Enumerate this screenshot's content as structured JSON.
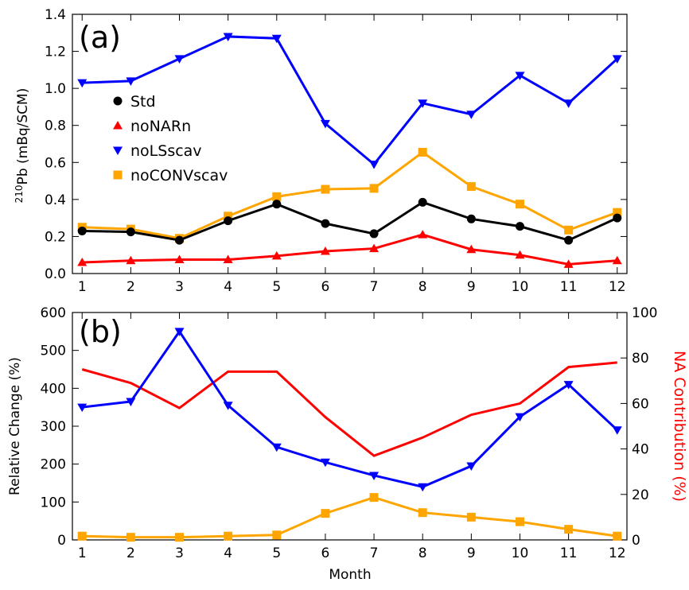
{
  "chart_data": [
    {
      "type": "line",
      "panel_label": "(a)",
      "x": [
        1,
        2,
        3,
        4,
        5,
        6,
        7,
        8,
        9,
        10,
        11,
        12
      ],
      "xlim": [
        0.8,
        12.2
      ],
      "ylim": [
        0.0,
        1.4
      ],
      "yticks": [
        0.0,
        0.2,
        0.4,
        0.6,
        0.8,
        1.0,
        1.2,
        1.4
      ],
      "ytick_labels": [
        "0.0",
        "0.2",
        "0.4",
        "0.6",
        "0.8",
        "1.0",
        "1.2",
        "1.4"
      ],
      "xtick_labels": [
        "1",
        "2",
        "3",
        "4",
        "5",
        "6",
        "7",
        "8",
        "9",
        "10",
        "11",
        "12"
      ],
      "ylabel_sup": "210",
      "ylabel_main": "Pb (mBq/SCM)",
      "legend_position": "upper-left",
      "series": [
        {
          "name": "Std",
          "color": "#000000",
          "marker": "circle",
          "values": [
            0.23,
            0.225,
            0.18,
            0.285,
            0.375,
            0.27,
            0.215,
            0.385,
            0.295,
            0.255,
            0.18,
            0.3
          ]
        },
        {
          "name": "noNARn",
          "color": "#ff0000",
          "marker": "triangle-up",
          "values": [
            0.06,
            0.07,
            0.075,
            0.075,
            0.095,
            0.12,
            0.135,
            0.21,
            0.13,
            0.1,
            0.05,
            0.07
          ]
        },
        {
          "name": "noLSscav",
          "color": "#0000ff",
          "marker": "triangle-down",
          "values": [
            1.03,
            1.04,
            1.16,
            1.28,
            1.27,
            0.81,
            0.59,
            0.92,
            0.86,
            1.07,
            0.92,
            1.16
          ]
        },
        {
          "name": "noCONVscav",
          "color": "#ffa500",
          "marker": "square",
          "values": [
            0.25,
            0.24,
            0.19,
            0.31,
            0.415,
            0.455,
            0.46,
            0.655,
            0.47,
            0.375,
            0.235,
            0.33
          ]
        }
      ]
    },
    {
      "type": "line",
      "panel_label": "(b)",
      "x": [
        1,
        2,
        3,
        4,
        5,
        6,
        7,
        8,
        9,
        10,
        11,
        12
      ],
      "xlim": [
        0.8,
        12.2
      ],
      "xlabel": "Month",
      "xtick_labels": [
        "1",
        "2",
        "3",
        "4",
        "5",
        "6",
        "7",
        "8",
        "9",
        "10",
        "11",
        "12"
      ],
      "ylabel_left": "Relative Change (%)",
      "ylim_left": [
        0,
        600
      ],
      "yticks_left": [
        0,
        100,
        200,
        300,
        400,
        500,
        600
      ],
      "ytick_labels_left": [
        "0",
        "100",
        "200",
        "300",
        "400",
        "500",
        "600"
      ],
      "ylabel_right": "NA Contribution (%)",
      "ylabel_right_color": "#ff0000",
      "ylim_right": [
        0,
        100
      ],
      "yticks_right": [
        0,
        20,
        40,
        60,
        80,
        100
      ],
      "ytick_labels_right": [
        "0",
        "20",
        "40",
        "60",
        "80",
        "100"
      ],
      "series": [
        {
          "axis": "right",
          "color": "#ff0000",
          "marker": "none",
          "values": [
            75,
            69,
            58,
            74,
            74,
            54,
            37,
            45,
            55,
            60,
            76,
            78
          ]
        },
        {
          "axis": "left",
          "color": "#0000ff",
          "marker": "triangle-down",
          "values": [
            350,
            365,
            550,
            355,
            245,
            205,
            170,
            140,
            195,
            325,
            410,
            290
          ]
        },
        {
          "axis": "left",
          "color": "#ffa500",
          "marker": "square",
          "values": [
            10,
            7,
            7,
            10,
            13,
            70,
            112,
            72,
            60,
            48,
            28,
            10
          ]
        }
      ]
    }
  ]
}
